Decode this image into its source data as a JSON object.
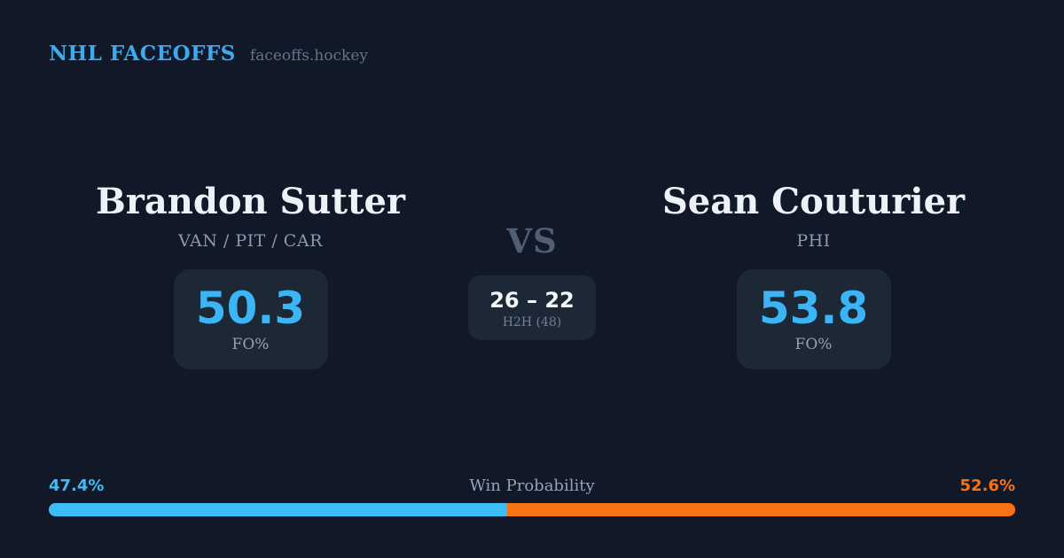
{
  "header": {
    "brand": "NHL FACEOFFS",
    "site": "faceoffs.hockey"
  },
  "players": {
    "left": {
      "name": "Brandon Sutter",
      "teams": "VAN / PIT / CAR",
      "fo_pct": "50.3",
      "stat_label": "FO%"
    },
    "right": {
      "name": "Sean Couturier",
      "teams": "PHI",
      "fo_pct": "53.8",
      "stat_label": "FO%"
    }
  },
  "matchup": {
    "vs_label": "VS",
    "h2h_score": "26 – 22",
    "h2h_label": "H2H (48)"
  },
  "win_probability": {
    "label": "Win Probability",
    "left_pct_text": "47.4%",
    "right_pct_text": "52.6%",
    "left_value": 47.4,
    "right_value": 52.6
  },
  "colors": {
    "background": "#111827",
    "panel": "#1d2836",
    "accent_blue": "#3dbcf6",
    "accent_orange": "#f77316",
    "brand_blue": "#3fa9ee",
    "text_primary": "#eef2f8",
    "text_muted": "#8b9aaf"
  }
}
